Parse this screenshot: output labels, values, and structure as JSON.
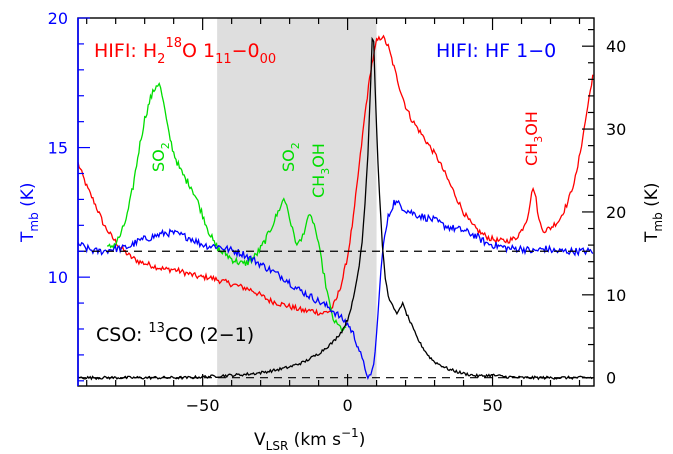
{
  "chart_data": {
    "type": "line",
    "colors": {
      "h2o": "#ff0000",
      "hf": "#0000ff",
      "co": "#000000",
      "green": "#00dd00",
      "shade": "#dedede",
      "left_axis": "#0000ff"
    },
    "xlim": [
      -93,
      85
    ],
    "ylim_left": [
      5.8,
      20
    ],
    "ylim_right": [
      -1,
      43.4
    ],
    "xticks": [
      -50,
      0,
      50
    ],
    "yticks_left": [
      10,
      15,
      20
    ],
    "yticks_right": [
      0,
      10,
      20,
      30,
      40
    ],
    "shaded_region": [
      -45,
      10
    ],
    "dashed_continuum_left": 11.0,
    "dashed_baseline_right": 0,
    "labels": {
      "xlabel": "V",
      "xlabel_sub": "LSR",
      "xlabel_unit": " (km s",
      "xlabel_sup": "−1",
      "xlabel_close": ")",
      "ylabel_left": "T",
      "ylabel_left_sub": "mb",
      "ylabel_left_unit": " (K)",
      "ylabel_right": "T",
      "ylabel_right_sub": "mb",
      "ylabel_right_unit": " (K)",
      "hifi_h2o_prefix": "HIFI:  H",
      "hifi_h2o_sub2": "2",
      "hifi_h2o_sup18": "18",
      "hifi_h2o_O": "O  1",
      "hifi_h2o_sub111": "11",
      "hifi_h2o_dash": "−0",
      "hifi_h2o_sub000": "00",
      "hifi_hf": "HIFI:  HF 1−0",
      "cso_prefix": "CSO:  ",
      "cso_sup13": "13",
      "cso_co": "CO (2−1)",
      "so2_a": "SO",
      "so2_a_sub": "2",
      "so2_b": "SO",
      "so2_b_sub": "2",
      "ch3oh_green": "CH",
      "ch3oh_green_sub": "3",
      "ch3oh_green_tail": "OH",
      "ch3oh_red": "CH",
      "ch3oh_red_sub": "3",
      "ch3oh_red_tail": "OH"
    },
    "series": [
      {
        "key": "h2o",
        "axis": "left",
        "x": [
          -93,
          -90,
          -87,
          -84,
          -81,
          -78,
          -75,
          -72,
          -69,
          -66,
          -63,
          -60,
          -57,
          -54,
          -51,
          -48,
          -45,
          -42,
          -39,
          -36,
          -33,
          -30,
          -27,
          -24,
          -21,
          -18,
          -15,
          -12,
          -9,
          -6,
          -4,
          -2,
          0,
          2,
          4,
          6,
          8,
          10,
          12,
          14,
          16,
          18,
          20,
          22,
          25,
          28,
          31,
          34,
          37,
          40,
          43,
          46,
          49,
          52,
          55,
          58,
          60,
          62,
          63,
          64,
          65,
          66,
          67,
          68,
          70,
          73,
          76,
          79,
          82,
          85
        ],
        "y": [
          14.4,
          13.5,
          12.8,
          12.0,
          11.5,
          11.1,
          10.8,
          10.6,
          10.5,
          10.4,
          10.3,
          10.3,
          10.2,
          10.1,
          10.0,
          10.0,
          9.9,
          9.8,
          9.7,
          9.6,
          9.5,
          9.3,
          9.1,
          9.0,
          8.9,
          8.8,
          8.7,
          8.7,
          8.6,
          8.7,
          9.1,
          9.8,
          10.8,
          12.3,
          14.3,
          16.3,
          18.0,
          19.1,
          19.3,
          18.9,
          18.1,
          17.3,
          16.6,
          16.1,
          15.6,
          15.1,
          14.6,
          13.9,
          13.2,
          12.5,
          12.0,
          11.7,
          11.5,
          11.4,
          11.4,
          11.5,
          11.8,
          12.3,
          12.9,
          13.5,
          13.0,
          12.2,
          11.9,
          11.8,
          11.9,
          12.2,
          12.9,
          14.0,
          16.0,
          18.1
        ]
      },
      {
        "key": "so2_segment",
        "axis": "left",
        "x": [
          -83,
          -80,
          -78,
          -76,
          -74,
          -72,
          -70,
          -68,
          -66,
          -65,
          -64,
          -63,
          -62,
          -60,
          -58,
          -56,
          -54,
          -52,
          -50,
          -48,
          -46,
          -44,
          -42,
          -40,
          -38,
          -36,
          -34,
          -32,
          -30,
          -28,
          -26,
          -24,
          -23,
          -22,
          -21,
          -20,
          -19,
          -18,
          -17,
          -16,
          -15,
          -14,
          -13,
          -12,
          -11,
          -10,
          -9,
          -8,
          -7,
          -6,
          -5,
          -4,
          -3,
          -2,
          -1,
          0
        ],
        "y": [
          11.1,
          11.3,
          11.7,
          12.4,
          13.5,
          14.9,
          16.1,
          16.9,
          17.4,
          17.5,
          17.0,
          16.4,
          15.7,
          14.8,
          14.2,
          13.8,
          13.5,
          13.0,
          12.4,
          11.8,
          11.3,
          11.0,
          10.9,
          10.7,
          10.6,
          10.5,
          10.6,
          10.8,
          11.1,
          11.5,
          12.0,
          12.5,
          12.8,
          13.0,
          12.8,
          12.3,
          11.8,
          11.4,
          11.3,
          11.4,
          11.8,
          12.2,
          12.3,
          12.2,
          11.8,
          11.2,
          10.6,
          10.0,
          9.4,
          8.8,
          8.4,
          8.2,
          8.1,
          8.0,
          8.0,
          7.9
        ]
      },
      {
        "key": "hf",
        "axis": "left",
        "x": [
          -93,
          -90,
          -87,
          -84,
          -81,
          -78,
          -75,
          -72,
          -69,
          -66,
          -63,
          -60,
          -57,
          -54,
          -51,
          -48,
          -45,
          -42,
          -39,
          -36,
          -33,
          -30,
          -27,
          -24,
          -21,
          -18,
          -15,
          -12,
          -9,
          -6,
          -3,
          0,
          2,
          4,
          5,
          6,
          7,
          8,
          9,
          10,
          11,
          12,
          14,
          16,
          18,
          20,
          22,
          24,
          27,
          30,
          33,
          36,
          40,
          44,
          48,
          52,
          56,
          60,
          64,
          68,
          72,
          76,
          80,
          85
        ],
        "y": [
          11.3,
          11.1,
          11.0,
          11.0,
          11.1,
          11.1,
          11.2,
          11.4,
          11.5,
          11.6,
          11.7,
          11.7,
          11.6,
          11.5,
          11.3,
          11.2,
          11.2,
          11.1,
          11.0,
          10.9,
          10.7,
          10.5,
          10.3,
          10.1,
          9.9,
          9.6,
          9.4,
          9.2,
          9.0,
          8.8,
          8.5,
          8.2,
          7.8,
          7.2,
          6.8,
          6.5,
          6.2,
          6.1,
          6.6,
          7.8,
          9.4,
          11.0,
          12.3,
          12.9,
          12.8,
          12.6,
          12.5,
          12.4,
          12.3,
          12.2,
          12.0,
          11.9,
          11.8,
          11.6,
          11.3,
          11.2,
          11.1,
          11.1,
          11.0,
          11.1,
          11.0,
          11.0,
          11.0,
          11.0
        ]
      },
      {
        "key": "co",
        "axis": "right",
        "x": [
          -93,
          -80,
          -70,
          -60,
          -55,
          -50,
          -45,
          -40,
          -35,
          -30,
          -25,
          -20,
          -15,
          -10,
          -5,
          -2,
          0,
          2,
          4,
          5,
          6,
          7,
          8,
          8.5,
          9,
          10,
          11,
          12,
          13,
          14,
          15,
          16,
          17,
          18,
          19,
          20,
          22,
          24,
          26,
          28,
          30,
          35,
          40,
          45,
          50,
          55,
          60,
          70,
          85
        ],
        "y": [
          0,
          0,
          0,
          0,
          0,
          0.1,
          0.2,
          0.3,
          0.4,
          0.6,
          0.9,
          1.3,
          1.9,
          2.9,
          4.3,
          5.6,
          7.0,
          9.5,
          13.5,
          16.5,
          21.0,
          27.0,
          36.0,
          41.0,
          40.5,
          30.0,
          22.0,
          16.0,
          12.0,
          10.0,
          9.0,
          8.3,
          7.6,
          8.5,
          8.9,
          8.0,
          6.4,
          4.8,
          3.6,
          2.6,
          1.9,
          1.0,
          0.5,
          0.2,
          0.3,
          0.1,
          0,
          0,
          0
        ]
      }
    ],
    "zero_line_right": 0
  }
}
